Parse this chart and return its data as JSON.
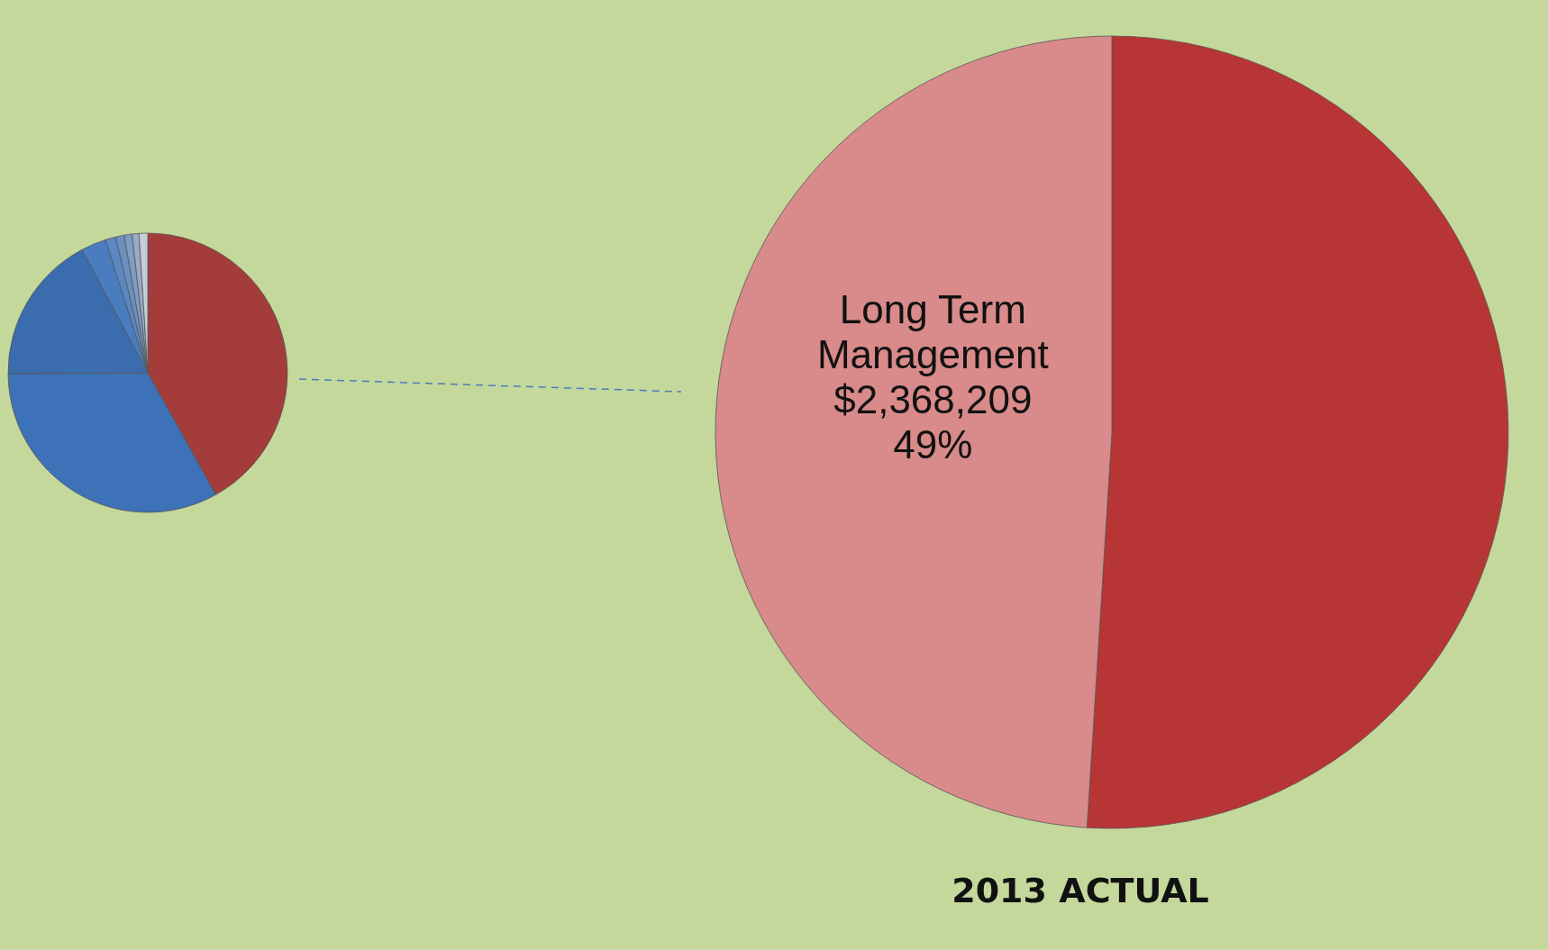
{
  "chart_data": [
    {
      "type": "pie",
      "categories": [
        null,
        null,
        null,
        null,
        null,
        null,
        null,
        null,
        null
      ],
      "values": [
        41.9,
        33,
        17.3,
        2.9,
        1.2,
        1.0,
        0.9,
        0.8,
        1.0
      ],
      "colors": [
        "#a33c3a",
        "#3d72b8",
        "#3a6cae",
        "#4a7cc0",
        "#5a88c4",
        "#6a90c0",
        "#7f9cc4",
        "#9aaac8",
        "#c8ccd8"
      ]
    },
    {
      "type": "pie",
      "title": "2013 ACTUAL",
      "categories": [
        null,
        "Long Term Management"
      ],
      "values": [
        51,
        49
      ],
      "colors": [
        "#b83535",
        "#d98a8a"
      ],
      "value_labels": [
        null,
        "$2,368,209\n49%"
      ]
    }
  ]
}
